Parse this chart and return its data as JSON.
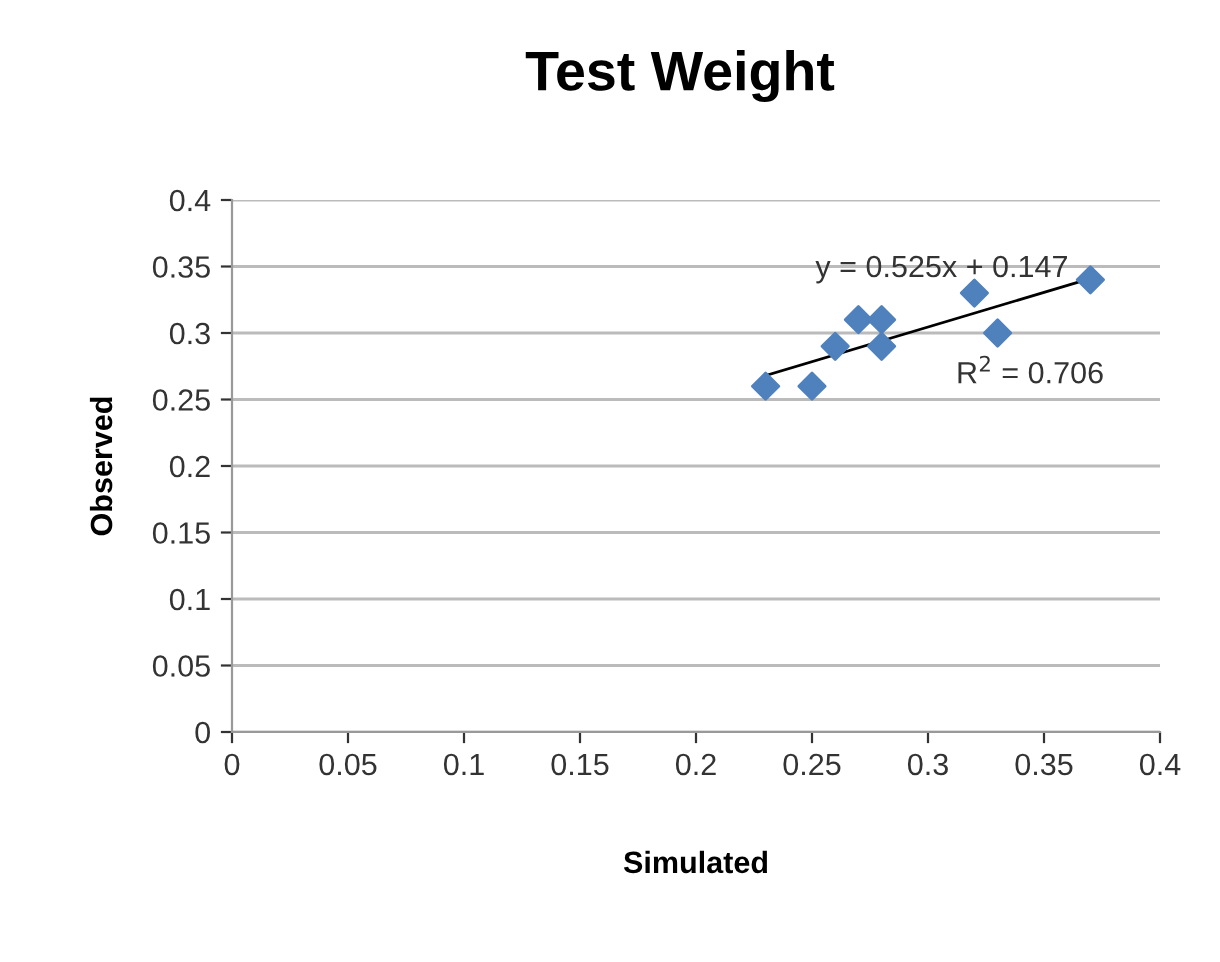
{
  "chart_data": {
    "type": "scatter",
    "title": "Test Weight",
    "xlabel": "Simulated",
    "ylabel": "Observed",
    "series": [
      {
        "color": "#4f81bd",
        "marker": "diamond",
        "x": [
          0.23,
          0.25,
          0.26,
          0.27,
          0.28,
          0.28,
          0.32,
          0.33,
          0.37
        ],
        "values": [
          0.26,
          0.26,
          0.29,
          0.31,
          0.31,
          0.29,
          0.33,
          0.3,
          0.34
        ]
      },
      {
        "type": "line",
        "color": "#000000",
        "marker": "none",
        "line_style": "solid",
        "x": [
          0.23,
          0.37
        ],
        "values": [
          0.268,
          0.341
        ]
      }
    ],
    "annotations": [
      "y = 0.525x + 0.147",
      "R$^{2}$ = 0.706"
    ],
    "xlim": [
      0,
      0.4
    ],
    "ylim": [
      0,
      0.4
    ],
    "xticks": [
      0,
      0.05,
      0.1,
      0.15,
      0.2,
      0.25,
      0.3,
      0.35,
      0.4
    ],
    "yticks": [
      0,
      0.05,
      0.1,
      0.15,
      0.2,
      0.25,
      0.3,
      0.35,
      0.4
    ],
    "grid": "y",
    "legend": false
  }
}
